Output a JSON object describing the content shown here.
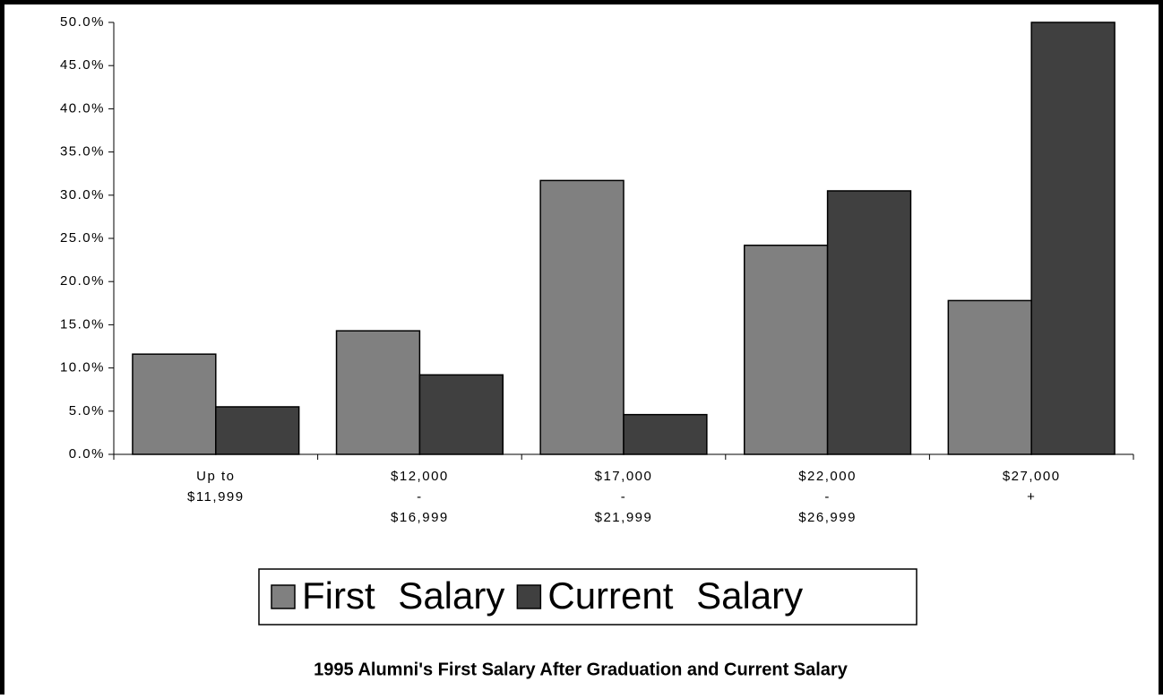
{
  "chart_data": {
    "type": "bar",
    "title": "1995 Alumni's First Salary After Graduation and Current Salary",
    "categories": [
      [
        "Up to",
        "$11,999"
      ],
      [
        "$12,000",
        "-",
        "$16,999"
      ],
      [
        "$17,000",
        "-",
        "$21,999"
      ],
      [
        "$22,000",
        "-",
        "$26,999"
      ],
      [
        "$27,000",
        "+"
      ]
    ],
    "series": [
      {
        "name": "First Salary",
        "color": "#808080",
        "values": [
          11.6,
          14.3,
          31.7,
          24.2,
          17.8
        ]
      },
      {
        "name": "Current Salary",
        "color": "#404040",
        "values": [
          5.5,
          9.2,
          4.6,
          30.5,
          50.0
        ]
      }
    ],
    "ylim": [
      0,
      50
    ],
    "yticks": [
      {
        "value": 0,
        "label": "0.0%"
      },
      {
        "value": 5,
        "label": "5.0%"
      },
      {
        "value": 10,
        "label": "10.0%"
      },
      {
        "value": 15,
        "label": "15.0%"
      },
      {
        "value": 20,
        "label": "20.0%"
      },
      {
        "value": 25,
        "label": "25.0%"
      },
      {
        "value": 30,
        "label": "30.0%"
      },
      {
        "value": 35,
        "label": "35.0%"
      },
      {
        "value": 40,
        "label": "40.0%"
      },
      {
        "value": 45,
        "label": "45.0%"
      },
      {
        "value": 50,
        "label": "50.0%"
      }
    ],
    "grid": false,
    "legend": "bottom"
  }
}
